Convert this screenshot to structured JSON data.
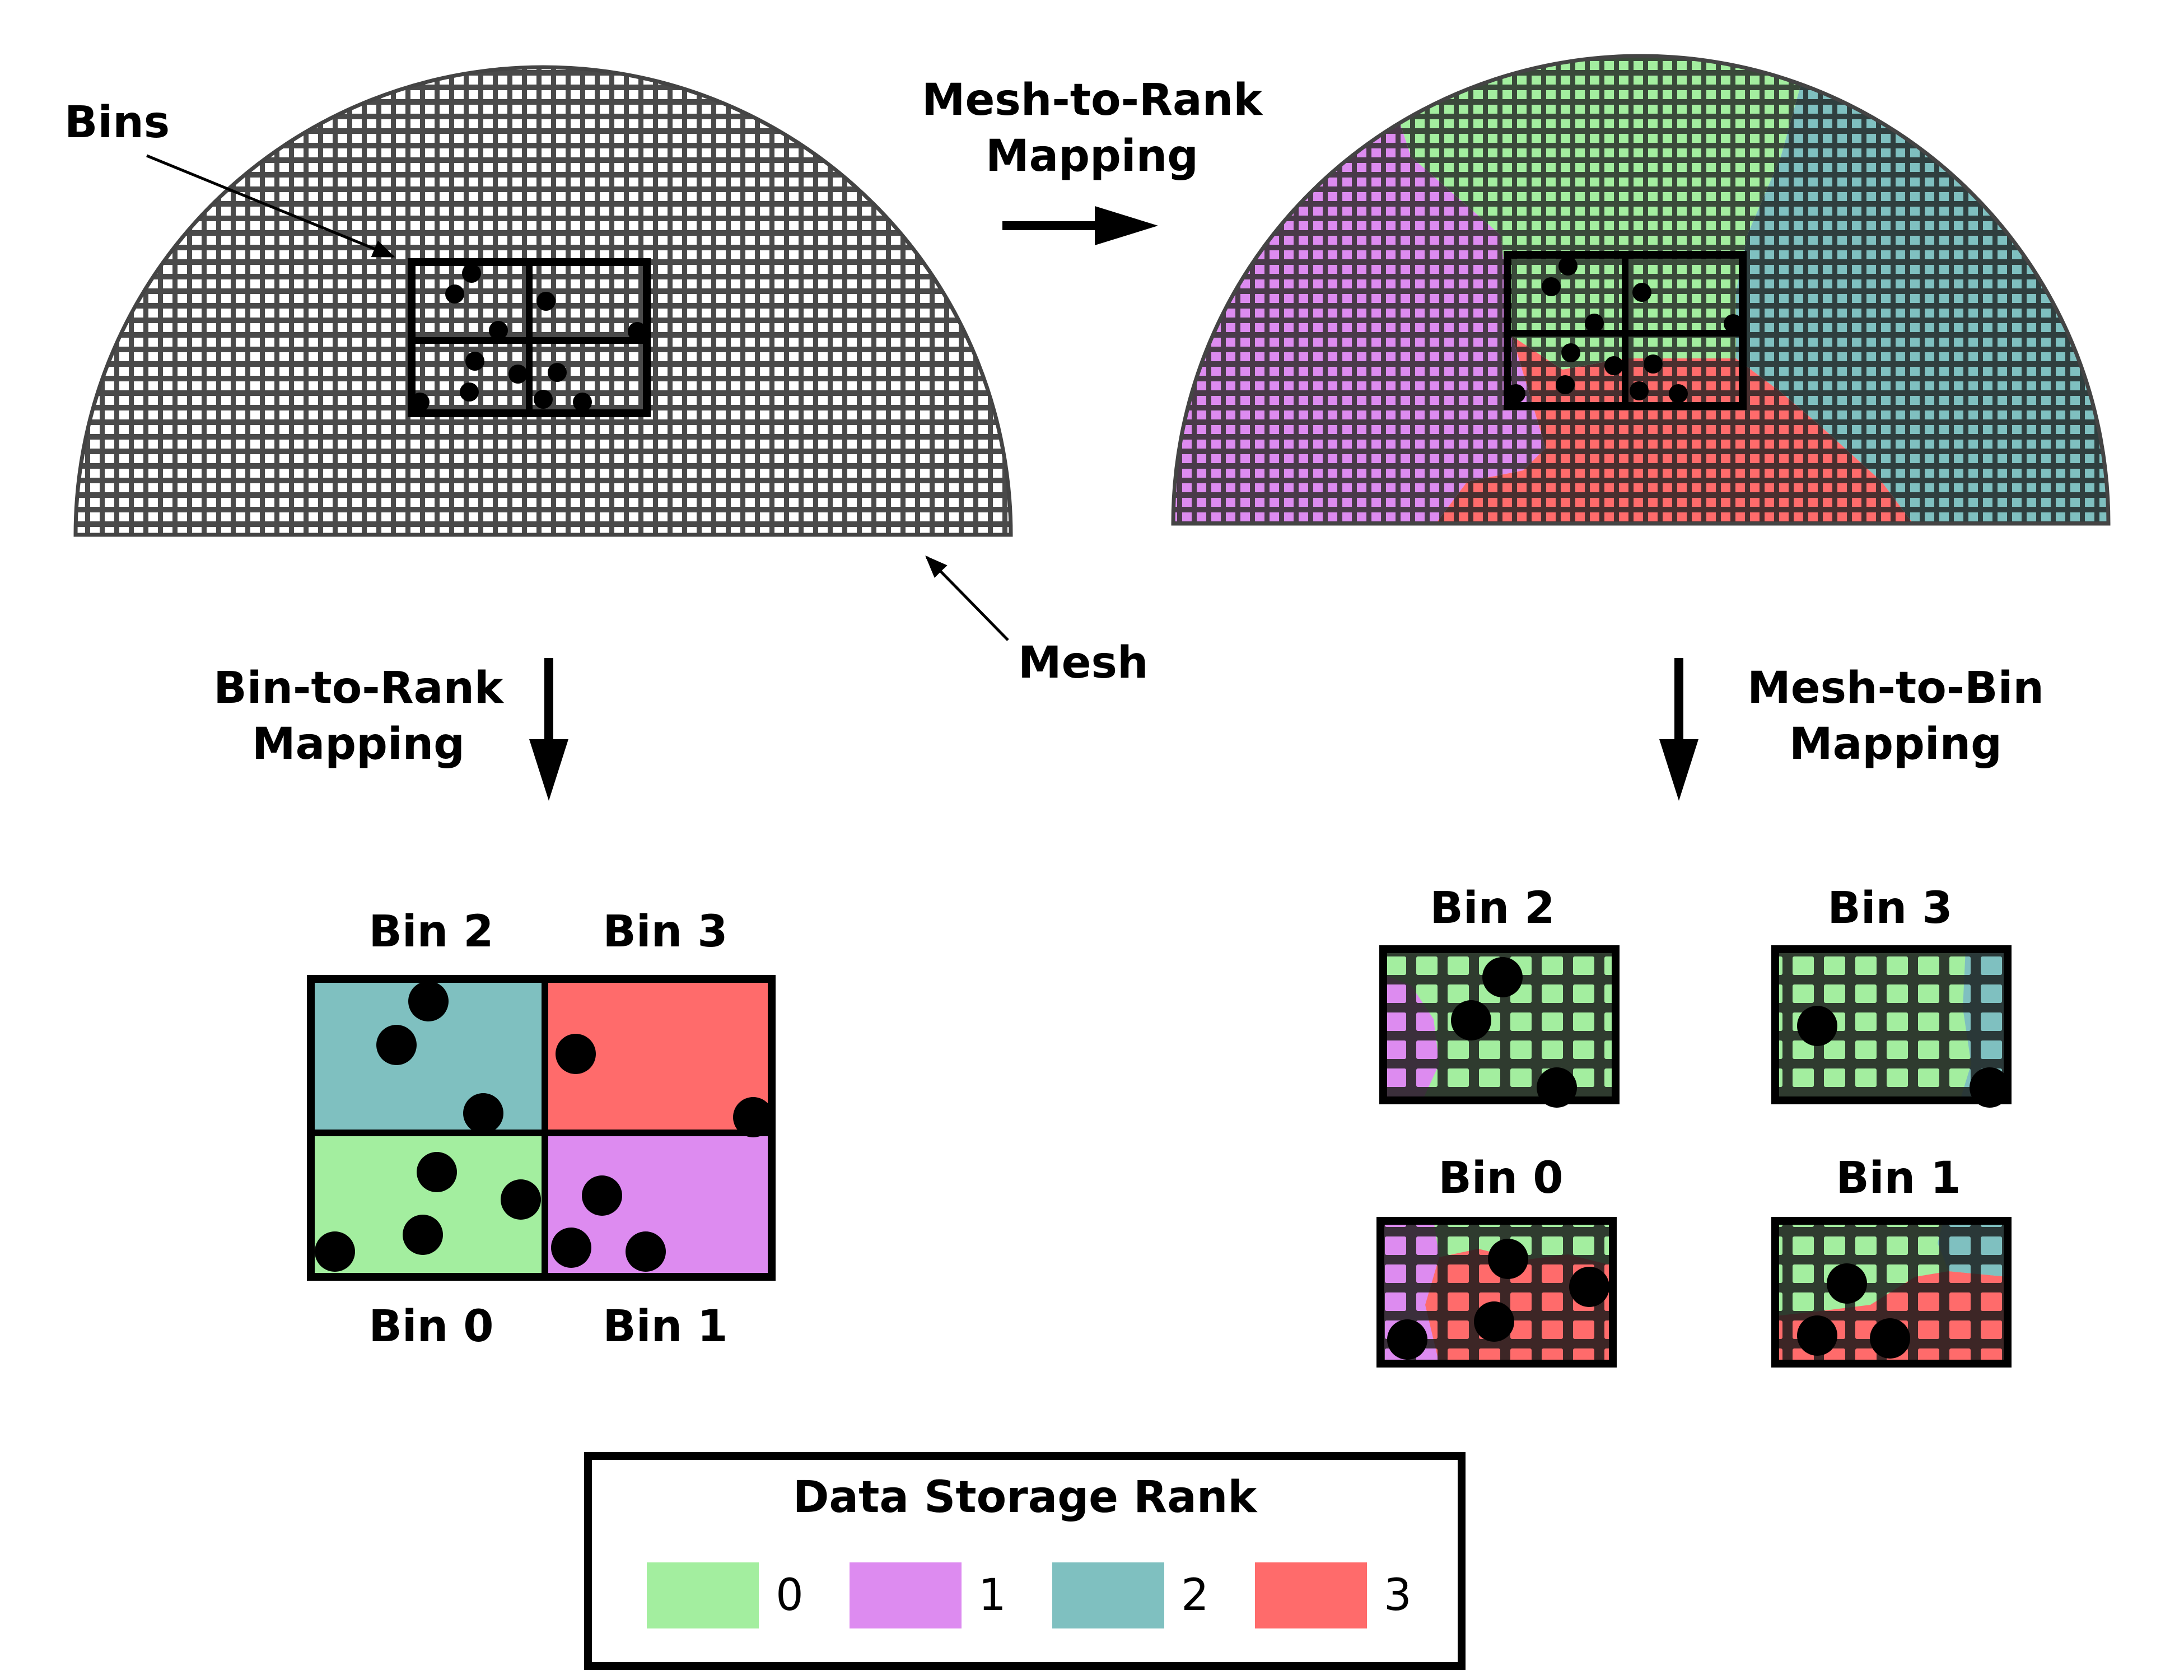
{
  "labels": {
    "bins": "Bins",
    "mesh": "Mesh",
    "mesh_to_rank_line1": "Mesh-to-Rank",
    "mesh_to_rank_line2": "Mapping",
    "bin_to_rank_line1": "Bin-to-Rank",
    "bin_to_rank_line2": "Mapping",
    "mesh_to_bin_line1": "Mesh-to-Bin",
    "mesh_to_bin_line2": "Mapping"
  },
  "bin_to_rank": {
    "bin2": "Bin 2",
    "bin3": "Bin 3",
    "bin0": "Bin 0",
    "bin1": "Bin 1"
  },
  "mesh_to_bin": {
    "bin2": "Bin 2",
    "bin3": "Bin 3",
    "bin0": "Bin 0",
    "bin1": "Bin 1"
  },
  "legend": {
    "title": "Data Storage Rank",
    "items": [
      {
        "label": "0",
        "color": "#a3ee9f"
      },
      {
        "label": "1",
        "color": "#dd8bf0"
      },
      {
        "label": "2",
        "color": "#7fc0c0"
      },
      {
        "label": "3",
        "color": "#ff6b6b"
      }
    ]
  },
  "colors": {
    "rank0": "#a3ee9f",
    "rank1": "#dd8bf0",
    "rank2": "#7fc0c0",
    "rank3": "#ff6b6b",
    "mesh_line": "#4a4a4a",
    "mesh_dark": "#2f3b2f"
  }
}
